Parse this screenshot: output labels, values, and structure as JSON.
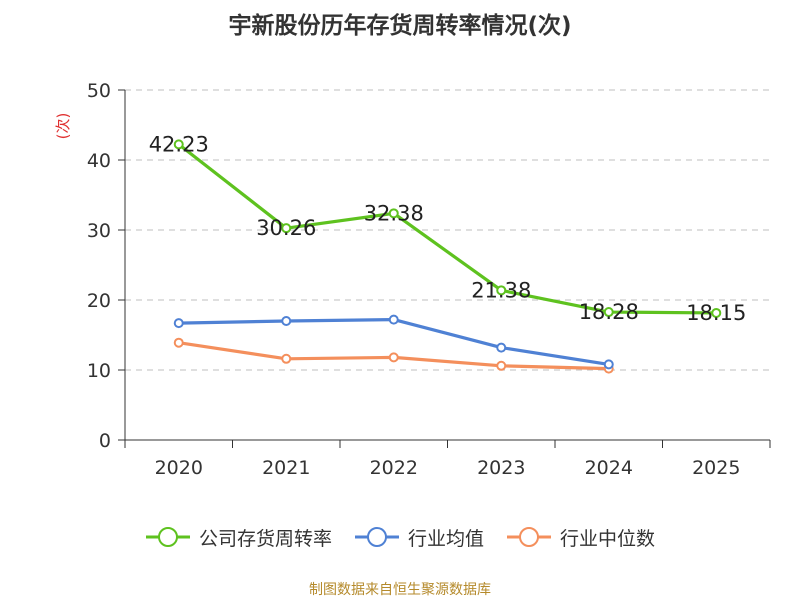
{
  "title": "宇新股份历年存货周转率情况(次)",
  "source": "制图数据来自恒生聚源数据库",
  "chart_data": {
    "type": "line",
    "title": "宇新股份历年存货周转率情况(次)",
    "ylabel": "(次)",
    "xlabel": "",
    "categories": [
      "2020",
      "2021",
      "2022",
      "2023",
      "2024",
      "2025"
    ],
    "ylim": [
      0,
      50
    ],
    "yticks": [
      0,
      10,
      20,
      30,
      40,
      50
    ],
    "grid": true,
    "legend_position": "bottom",
    "series": [
      {
        "name": "公司存货周转率",
        "color": "#5ec21f",
        "values": [
          42.23,
          30.26,
          32.38,
          21.38,
          18.28,
          18.15
        ],
        "labels": true
      },
      {
        "name": "行业均值",
        "color": "#4f81d4",
        "values": [
          16.7,
          17.0,
          17.2,
          13.2,
          10.8,
          null
        ],
        "labels": false
      },
      {
        "name": "行业中位数",
        "color": "#f48f5c",
        "values": [
          13.9,
          11.6,
          11.8,
          10.6,
          10.2,
          null
        ],
        "labels": false
      }
    ]
  }
}
